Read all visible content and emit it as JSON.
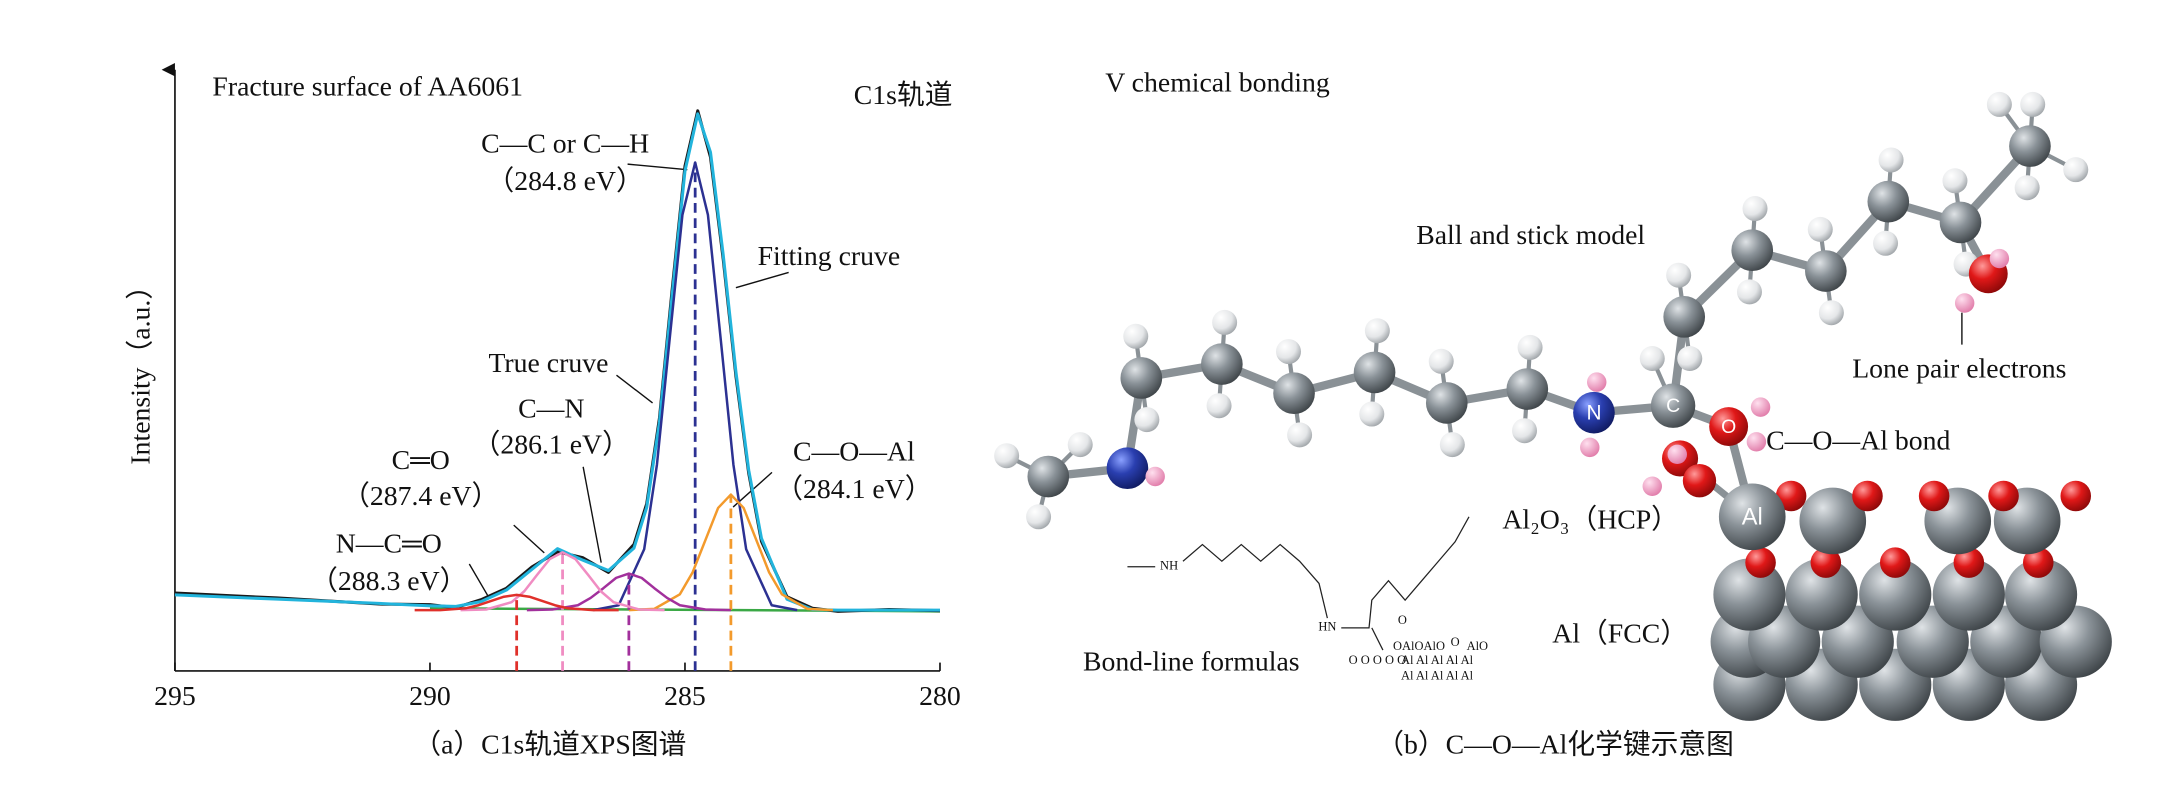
{
  "chart_data": {
    "type": "line",
    "title": "Fracture surface of AA6061",
    "subtitle": "C1s轨道",
    "y_label": "Intensity（a.u.）",
    "caption": "（a）C1s轨道XPS图谱",
    "xlim": [
      295,
      280
    ],
    "xticks": [
      295,
      290,
      285,
      280
    ],
    "ylim": [
      0,
      100
    ],
    "annotations": [
      "（284.8 eV）",
      "（284.1 eV）",
      "（286.1 eV）",
      "（287.4 eV）",
      "（288.3 eV）"
    ],
    "series": [
      {
        "color": "#3aa845",
        "x": [
          290,
          280
        ],
        "values": [
          10.3,
          9.8
        ]
      },
      {
        "name": "True cruve",
        "color": "#1a1a1a",
        "x": [
          295,
          293,
          291,
          290,
          289.5,
          289,
          288.5,
          288,
          287.5,
          287,
          286.5,
          286,
          285.75,
          285.5,
          285.25,
          285,
          284.75,
          284.5,
          284.25,
          284,
          283.75,
          283.5,
          283,
          282.5,
          282,
          281,
          280
        ],
        "values": [
          12.8,
          12.0,
          11.0,
          10.9,
          10.4,
          11.7,
          13.6,
          17.1,
          19.6,
          18.6,
          16.2,
          20.8,
          27.5,
          41.6,
          62.8,
          83.0,
          92.1,
          84.5,
          67.7,
          48.4,
          32.5,
          21.3,
          12.2,
          10.3,
          9.8,
          10.1,
          9.9
        ]
      },
      {
        "name": "Fitting cruve",
        "color": "#22b4dc",
        "x": [
          295,
          293,
          291,
          290,
          289.5,
          289,
          288.5,
          288,
          287.5,
          287,
          286.5,
          286,
          285.75,
          285.5,
          285.25,
          285,
          284.75,
          284.5,
          284.25,
          284,
          283.75,
          283.5,
          283,
          282.5,
          282,
          281,
          280
        ],
        "values": [
          12.5,
          11.8,
          11.1,
          10.7,
          10.6,
          11.4,
          13.3,
          16.7,
          20.1,
          18.2,
          16.5,
          20.2,
          26.9,
          40.9,
          61.9,
          82.2,
          91.6,
          85.3,
          68.4,
          49.1,
          33.0,
          21.8,
          11.8,
          10.1,
          10.0,
          10.0,
          10.0
        ]
      },
      {
        "name": "C—C or C—H",
        "color": "#2c3192",
        "drop_line": true,
        "x": [
          286.8,
          286.3,
          285.8,
          285.55,
          285.3,
          285.05,
          284.8,
          284.55,
          284.3,
          284.05,
          283.8,
          283.3,
          282.8
        ],
        "values": [
          10.0,
          10.8,
          20.0,
          33.9,
          54.6,
          75.0,
          83.6,
          75.0,
          54.6,
          33.9,
          20.0,
          10.8,
          10.0
        ]
      },
      {
        "name": "C—O—Al",
        "color": "#f39a2c",
        "drop_line": true,
        "x": [
          286.1,
          285.6,
          285.1,
          284.85,
          284.6,
          284.35,
          284.1,
          283.85,
          283.6,
          283.35,
          283.1,
          282.6,
          282.1
        ],
        "values": [
          10.0,
          10.2,
          12.6,
          16.2,
          21.5,
          26.8,
          29.0,
          26.8,
          21.5,
          16.2,
          12.6,
          10.2,
          10.0
        ]
      },
      {
        "name": "C—N",
        "color": "#a2309c",
        "drop_line": true,
        "x": [
          288.1,
          287.6,
          287.1,
          286.85,
          286.6,
          286.35,
          286.1,
          285.85,
          285.6,
          285.35,
          285.1,
          284.6,
          284.1
        ],
        "values": [
          10.0,
          10.1,
          10.8,
          12.0,
          13.6,
          15.3,
          16.0,
          15.3,
          13.6,
          12.0,
          10.8,
          10.1,
          10.0
        ]
      },
      {
        "name": "C═O",
        "color": "#f08cc2",
        "drop_line": true,
        "x": [
          289.4,
          288.9,
          288.4,
          288.15,
          287.9,
          287.65,
          287.4,
          287.15,
          286.9,
          286.65,
          286.4,
          285.9,
          285.4
        ],
        "values": [
          10.0,
          10.1,
          11.3,
          13.1,
          15.8,
          18.4,
          19.5,
          18.4,
          15.8,
          13.1,
          11.3,
          10.1,
          10.0
        ]
      },
      {
        "name": "N—C═O",
        "color": "#e0302a",
        "drop_line": true,
        "x": [
          290.3,
          289.8,
          289.3,
          289.05,
          288.8,
          288.55,
          288.3,
          288.05,
          287.8,
          287.55,
          287.3,
          286.8,
          286.3
        ],
        "values": [
          10.0,
          10.0,
          10.3,
          10.8,
          11.5,
          12.2,
          12.5,
          12.2,
          11.5,
          10.8,
          10.3,
          10.0,
          10.0
        ]
      }
    ]
  },
  "diagram": {
    "title": "V chemical bonding",
    "model_label": "Ball and stick model",
    "lone_pair_label": "Lone pair electrons",
    "bond_label": "C—O—Al bond",
    "oxide_label": "Al₂O₃（HCP）",
    "metal_label": "Al（FCC）",
    "formula_label": "Bond-line formulas",
    "atoms": {
      "n": "N",
      "c": "C",
      "o": "O",
      "al": "Al"
    },
    "formula_atoms": [
      "NH",
      "HN",
      "O",
      "OAlOAlO",
      "O",
      "AlO",
      "O O O O O",
      "Al Al Al Al Al",
      "Al Al Al Al Al"
    ],
    "caption": "（b）C—O—Al化学键示意图"
  }
}
